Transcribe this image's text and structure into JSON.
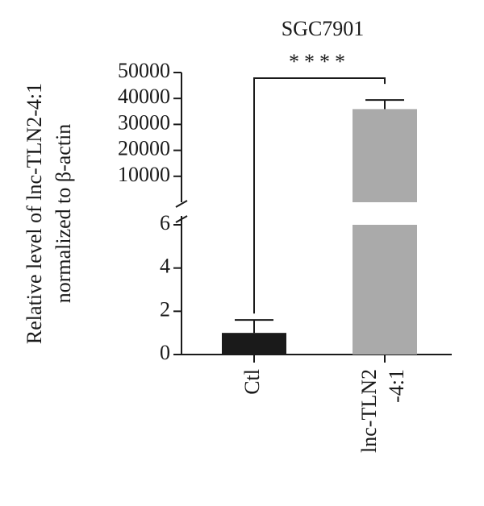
{
  "chart_data": {
    "type": "bar",
    "title": "SGC7901",
    "y_label": [
      "Relative level of lnc-TLN2-4:1",
      "normalized to β-actin"
    ],
    "categories": [
      [
        "Ctl"
      ],
      [
        "lnc-TLN2",
        "-4:1"
      ]
    ],
    "values": [
      1,
      35900
    ],
    "errors": [
      0.6,
      3500
    ],
    "colors": [
      "#1a1a1a",
      "#aaaaaa"
    ],
    "axis_segments": [
      {
        "ylim": [
          0,
          6
        ],
        "yticks": [
          0,
          2,
          4,
          6
        ]
      },
      {
        "ylim": [
          0,
          50000
        ],
        "yticks": [
          10000,
          20000,
          30000,
          40000,
          50000
        ]
      }
    ],
    "annotation": "****"
  }
}
